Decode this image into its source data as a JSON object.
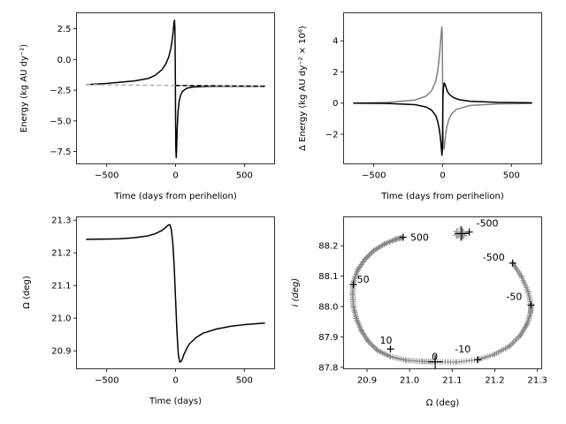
{
  "chart_data": [
    {
      "type": "line",
      "panel": "top-left",
      "xlabel": "Time (days from perihelion)",
      "ylabel": "Energy (kg AU dy⁻²)",
      "xlim": [
        -720,
        720
      ],
      "ylim": [
        -8.5,
        3.8
      ],
      "xticks": [
        -500,
        0,
        500
      ],
      "xtick_labels": [
        "−500",
        "0",
        "500"
      ],
      "yticks": [
        2.5,
        0.0,
        -2.5,
        -5.0,
        -7.5
      ],
      "ytick_labels": [
        "2.5",
        "0.0",
        "−2.5",
        "−5.0",
        "−7.5"
      ],
      "series": [
        {
          "name": "energy",
          "color": "#000000",
          "style": "solid",
          "x": [
            -650,
            -500,
            -300,
            -200,
            -150,
            -100,
            -70,
            -50,
            -35,
            -25,
            -18,
            -12,
            -8,
            -5,
            -3,
            -1,
            0,
            2,
            5,
            8,
            12,
            18,
            25,
            35,
            50,
            80,
            120,
            200,
            300,
            500,
            650
          ],
          "y": [
            -2.05,
            -1.95,
            -1.75,
            -1.55,
            -1.3,
            -0.85,
            -0.35,
            0.2,
            0.85,
            1.55,
            2.2,
            2.9,
            3.2,
            2.6,
            1.0,
            -2.0,
            -4.5,
            -7.2,
            -8.0,
            -7.2,
            -5.6,
            -4.3,
            -3.5,
            -2.95,
            -2.6,
            -2.35,
            -2.25,
            -2.2,
            -2.18,
            -2.18,
            -2.18
          ]
        },
        {
          "name": "energy-reference",
          "color": "#b0b0b0",
          "style": "dashed",
          "x": [
            -650,
            650
          ],
          "y": [
            -2.05,
            -2.18
          ]
        },
        {
          "name": "energy-reference-post",
          "color": "#000000",
          "style": "dashed",
          "x": [
            0,
            650
          ],
          "y": [
            -2.12,
            -2.18
          ]
        }
      ]
    },
    {
      "type": "line",
      "panel": "top-right",
      "xlabel": "Time (days from perihelion)",
      "ylabel": "Δ Energy (kg AU dy⁻² × 10⁶)",
      "xlim": [
        -720,
        720
      ],
      "ylim": [
        -3.9,
        5.8
      ],
      "xticks": [
        -500,
        0,
        500
      ],
      "xtick_labels": [
        "−500",
        "0",
        "500"
      ],
      "yticks": [
        4,
        2,
        0,
        -2
      ],
      "ytick_labels": [
        "4",
        "2",
        "0",
        "−2"
      ],
      "series": [
        {
          "name": "delta-energy-gray",
          "color": "#808080",
          "style": "solid",
          "x": [
            -650,
            -400,
            -200,
            -120,
            -80,
            -50,
            -35,
            -25,
            -18,
            -12,
            -8,
            -5,
            -2,
            0,
            2,
            5,
            10,
            15,
            22,
            30,
            45,
            65,
            100,
            200,
            400,
            650
          ],
          "y": [
            0.0,
            0.05,
            0.2,
            0.45,
            0.8,
            1.4,
            2.1,
            2.9,
            3.6,
            4.3,
            4.7,
            4.9,
            4.0,
            1.0,
            -1.5,
            -2.6,
            -2.95,
            -2.6,
            -2.0,
            -1.55,
            -1.05,
            -0.7,
            -0.4,
            -0.15,
            -0.05,
            -0.02
          ]
        },
        {
          "name": "delta-energy-black",
          "color": "#000000",
          "style": "solid",
          "x": [
            -650,
            -400,
            -200,
            -120,
            -80,
            -50,
            -35,
            -25,
            -18,
            -12,
            -8,
            -5,
            -2,
            0,
            2,
            5,
            8,
            12,
            18,
            25,
            35,
            50,
            80,
            120,
            200,
            400,
            650
          ],
          "y": [
            0.0,
            -0.02,
            -0.1,
            -0.25,
            -0.45,
            -0.8,
            -1.2,
            -1.65,
            -2.1,
            -2.6,
            -3.05,
            -3.35,
            -3.0,
            -1.5,
            0.3,
            0.9,
            1.1,
            1.3,
            1.2,
            1.0,
            0.75,
            0.55,
            0.35,
            0.22,
            0.12,
            0.05,
            0.02
          ]
        }
      ]
    },
    {
      "type": "line",
      "panel": "bottom-left",
      "xlabel": "Time (days)",
      "ylabel": "Ω (deg)",
      "xlim": [
        -720,
        720
      ],
      "ylim": [
        20.845,
        21.31
      ],
      "xticks": [
        -500,
        0,
        500
      ],
      "xtick_labels": [
        "−500",
        "0",
        "500"
      ],
      "yticks": [
        21.3,
        21.2,
        21.1,
        21.0,
        20.9
      ],
      "ytick_labels": [
        "21.3",
        "21.2",
        "21.1",
        "21.0",
        "20.9"
      ],
      "series": [
        {
          "name": "omega",
          "color": "#000000",
          "style": "solid",
          "x": [
            -650,
            -500,
            -400,
            -300,
            -200,
            -150,
            -100,
            -70,
            -50,
            -40,
            -30,
            -20,
            -10,
            0,
            10,
            20,
            30,
            40,
            50,
            60,
            80,
            100,
            150,
            200,
            300,
            400,
            500,
            650
          ],
          "y": [
            21.241,
            21.242,
            21.243,
            21.246,
            21.252,
            21.258,
            21.268,
            21.278,
            21.286,
            21.285,
            21.27,
            21.23,
            21.16,
            21.06,
            20.96,
            20.89,
            20.866,
            20.867,
            20.876,
            20.888,
            20.906,
            20.921,
            20.941,
            20.954,
            20.967,
            20.975,
            20.98,
            20.985
          ]
        }
      ]
    },
    {
      "type": "scatter",
      "panel": "bottom-right",
      "xlabel": "Ω (deg)",
      "ylabel": "i (deg)",
      "xlim": [
        20.845,
        21.31
      ],
      "ylim": [
        87.795,
        88.295
      ],
      "xticks": [
        20.9,
        21.0,
        21.1,
        21.2,
        21.3
      ],
      "xtick_labels": [
        "20.9",
        "21.0",
        "21.1",
        "21.2",
        "21.3"
      ],
      "yticks": [
        88.2,
        88.1,
        88.0,
        87.9,
        87.8
      ],
      "ytick_labels": [
        "88.2",
        "88.1",
        "88.0",
        "87.9",
        "87.8"
      ],
      "track_color": "#808080",
      "tracks": [
        {
          "name": "left-loop",
          "omega": [
            20.985,
            20.965,
            20.94,
            20.915,
            20.895,
            20.878,
            20.868,
            20.866,
            20.868,
            20.875,
            20.887,
            20.903,
            20.925,
            20.955,
            20.992,
            21.03,
            21.06
          ],
          "i": [
            88.228,
            88.22,
            88.205,
            88.183,
            88.155,
            88.12,
            88.08,
            88.04,
            88.0,
            87.96,
            87.92,
            87.885,
            87.855,
            87.835,
            87.823,
            87.819,
            87.818
          ]
        },
        {
          "name": "right-loop",
          "omega": [
            21.06,
            21.11,
            21.16,
            21.2,
            21.235,
            21.26,
            21.276,
            21.284,
            21.285,
            21.278,
            21.262,
            21.242
          ],
          "i": [
            87.818,
            87.817,
            87.825,
            87.843,
            87.87,
            87.905,
            87.943,
            87.98,
            88.005,
            88.05,
            88.1,
            88.143
          ]
        }
      ],
      "cluster": {
        "name": "start-cluster",
        "omega": 21.122,
        "i": 88.24,
        "color": "#a0a0a0"
      },
      "markers": [
        {
          "omega": 20.985,
          "i": 88.228,
          "label": "500"
        },
        {
          "omega": 20.868,
          "i": 88.072,
          "label": "50"
        },
        {
          "omega": 20.955,
          "i": 87.86,
          "label": "10"
        },
        {
          "omega": 21.06,
          "i": 87.818,
          "label": "0",
          "big": true
        },
        {
          "omega": 21.16,
          "i": 87.825,
          "label": "-10"
        },
        {
          "omega": 21.285,
          "i": 88.005,
          "label": "-50"
        },
        {
          "omega": 21.242,
          "i": 88.143,
          "label": "-500"
        },
        {
          "omega": 21.14,
          "i": 88.245,
          "label": "-500"
        },
        {
          "omega": 21.122,
          "i": 88.24,
          "label": "",
          "big": true
        }
      ]
    }
  ]
}
